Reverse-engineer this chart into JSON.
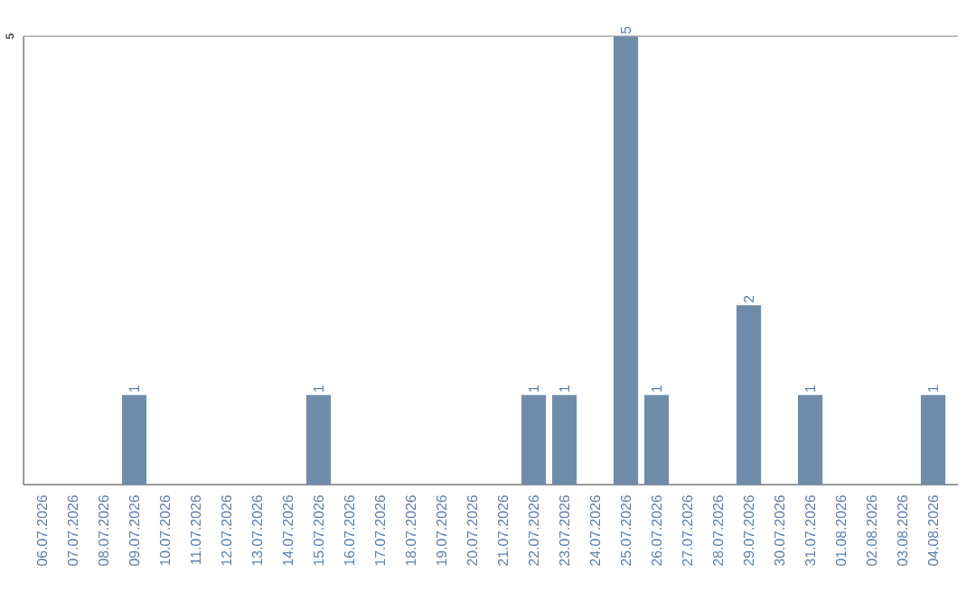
{
  "chart_data": {
    "type": "bar",
    "categories": [
      "06.07.2026",
      "07.07.2026",
      "08.07.2026",
      "09.07.2026",
      "10.07.2026",
      "11.07.2026",
      "12.07.2026",
      "13.07.2026",
      "14.07.2026",
      "15.07.2026",
      "16.07.2026",
      "17.07.2026",
      "18.07.2026",
      "19.07.2026",
      "20.07.2026",
      "21.07.2026",
      "22.07.2026",
      "23.07.2026",
      "24.07.2026",
      "25.07.2026",
      "26.07.2026",
      "27.07.2026",
      "28.07.2026",
      "29.07.2026",
      "30.07.2026",
      "31.07.2026",
      "01.08.2026",
      "02.08.2026",
      "03.08.2026",
      "04.08.2026"
    ],
    "values": [
      0,
      0,
      0,
      1,
      0,
      0,
      0,
      0,
      0,
      1,
      0,
      0,
      0,
      0,
      0,
      0,
      1,
      1,
      0,
      5,
      1,
      0,
      0,
      2,
      0,
      1,
      0,
      0,
      0,
      1
    ],
    "value_labels": [
      null,
      null,
      null,
      "1",
      null,
      null,
      null,
      null,
      null,
      "1",
      null,
      null,
      null,
      null,
      null,
      null,
      "1",
      "1",
      null,
      "5",
      "1",
      null,
      null,
      "2",
      null,
      "1",
      null,
      null,
      null,
      "1"
    ],
    "color": "#6f8cab",
    "ylim": [
      0,
      5
    ],
    "yticks": [
      5
    ]
  }
}
